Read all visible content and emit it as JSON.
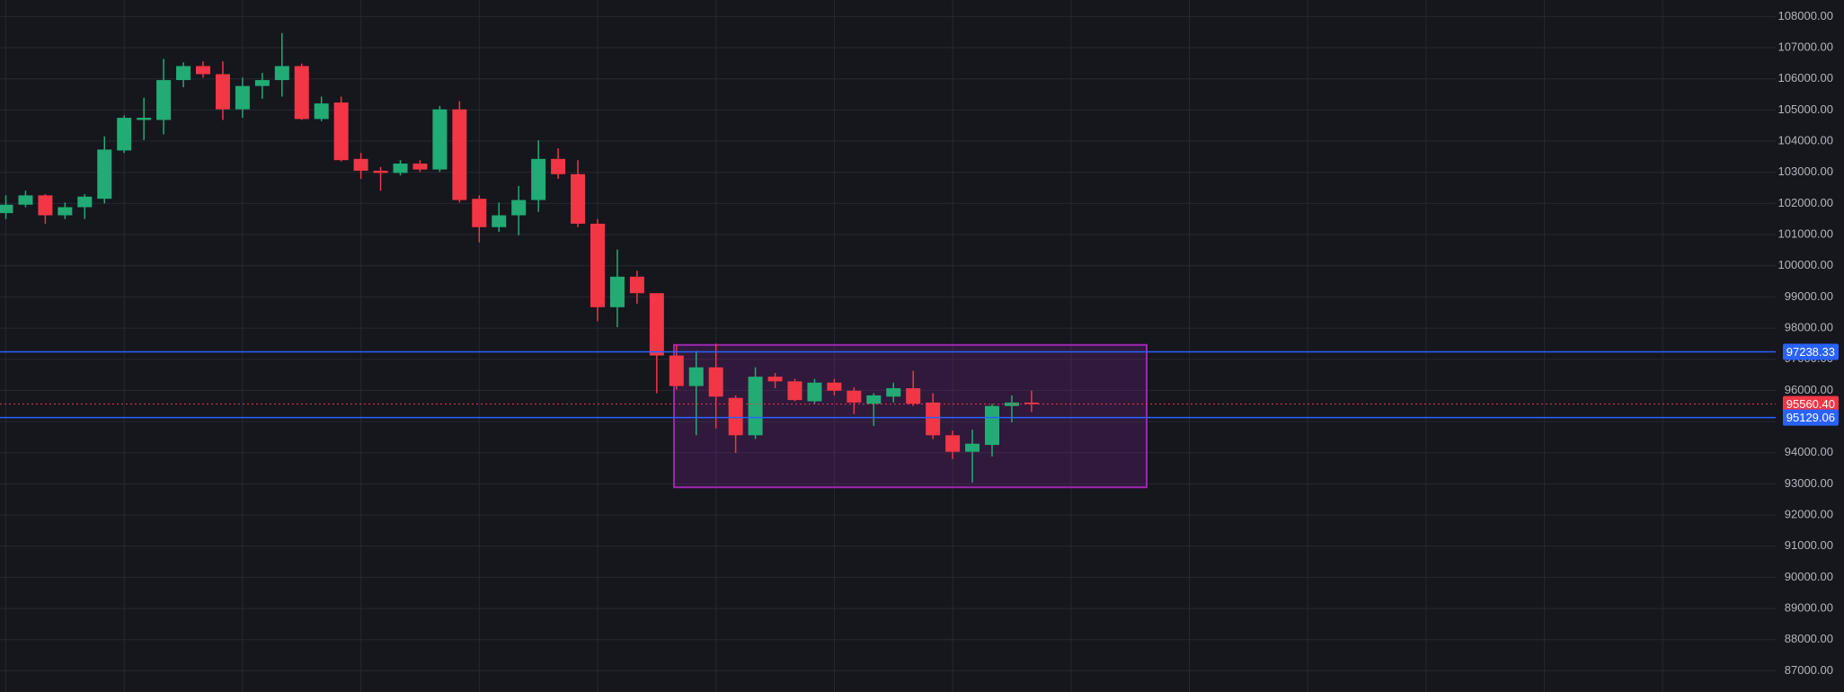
{
  "chart_data": {
    "type": "candlestick",
    "open": [
      101690,
      101960,
      102260,
      101620,
      101880,
      102150,
      103700,
      104680,
      104680,
      105960,
      106410,
      106150,
      105020,
      105770,
      105960,
      106410,
      104710,
      105240,
      103430,
      103050,
      102980,
      103280,
      103090,
      105020,
      102150,
      101240,
      101620,
      102110,
      103430,
      102940,
      101350,
      98670,
      99650,
      99120,
      97120,
      96140,
      96740,
      95760,
      94560,
      96440,
      96290,
      95650,
      96250,
      95990,
      95570,
      95800,
      96070,
      95610,
      94560,
      94030,
      94250,
      95500,
      95610
    ],
    "high": [
      102260,
      102410,
      102300,
      102030,
      102300,
      104150,
      104830,
      105390,
      106640,
      106530,
      106560,
      106560,
      106040,
      106190,
      107470,
      106490,
      105430,
      105430,
      103620,
      103170,
      103390,
      103390,
      105130,
      105280,
      102260,
      102030,
      102560,
      104030,
      103770,
      103390,
      101500,
      100520,
      99840,
      99120,
      97460,
      97270,
      97500,
      95840,
      96740,
      96560,
      96370,
      96370,
      96370,
      96100,
      95910,
      96250,
      96630,
      95910,
      94710,
      94740,
      95570,
      95840,
      95990
    ],
    "low": [
      101500,
      101880,
      101350,
      101500,
      101500,
      102000,
      103620,
      104030,
      104220,
      105730,
      106040,
      104680,
      104750,
      105360,
      105430,
      104680,
      104640,
      103350,
      102790,
      102410,
      102900,
      103010,
      103010,
      102030,
      100750,
      101090,
      100980,
      101730,
      102790,
      101240,
      98220,
      98030,
      98780,
      95910,
      96030,
      94560,
      94780,
      93990,
      94440,
      96070,
      95650,
      95570,
      95840,
      95240,
      94860,
      95610,
      95500,
      94440,
      93800,
      93040,
      93880,
      94970,
      95310
    ],
    "close": [
      101960,
      102260,
      101620,
      101880,
      102220,
      103730,
      104750,
      104750,
      105960,
      106410,
      106150,
      105020,
      105770,
      105960,
      106410,
      104710,
      105210,
      103390,
      103050,
      102980,
      103280,
      103090,
      105020,
      102110,
      101240,
      101620,
      102110,
      103430,
      102940,
      101350,
      98670,
      99650,
      99120,
      97120,
      96140,
      96740,
      95800,
      94560,
      96440,
      96290,
      95690,
      96250,
      95990,
      95610,
      95840,
      96070,
      95570,
      94560,
      94030,
      94290,
      95500,
      95610,
      95560.4
    ],
    "up_color": "#22ab74",
    "down_color": "#f23645",
    "ylim": [
      86320,
      108530
    ],
    "yticks": [
      {
        "value": 87000,
        "label": "87000.00"
      },
      {
        "value": 88000,
        "label": "88000.00"
      },
      {
        "value": 89000,
        "label": "89000.00"
      },
      {
        "value": 90000,
        "label": "90000.00"
      },
      {
        "value": 91000,
        "label": "91000.00"
      },
      {
        "value": 92000,
        "label": "92000.00"
      },
      {
        "value": 93000,
        "label": "93000.00"
      },
      {
        "value": 94000,
        "label": "94000.00"
      },
      {
        "value": 95000,
        "label": "95000.00"
      },
      {
        "value": 96000,
        "label": "96000.00"
      },
      {
        "value": 97000,
        "label": "97000.00"
      },
      {
        "value": 98000,
        "label": "98000.00"
      },
      {
        "value": 99000,
        "label": "99000.00"
      },
      {
        "value": 100000,
        "label": "100000.00"
      },
      {
        "value": 101000,
        "label": "101000.00"
      },
      {
        "value": 102000,
        "label": "102000.00"
      },
      {
        "value": 103000,
        "label": "103000.00"
      },
      {
        "value": 104000,
        "label": "104000.00"
      },
      {
        "value": 105000,
        "label": "105000.00"
      },
      {
        "value": 106000,
        "label": "106000.00"
      },
      {
        "value": 107000,
        "label": "107000.00"
      },
      {
        "value": 108000,
        "label": "108000.00"
      }
    ],
    "grid": true,
    "levels": [
      {
        "price": 97238.33,
        "color": "#2962ff",
        "style": "solid"
      },
      {
        "price": {
          "value": 95560.4,
          "label": "95560.40"
        },
        "color": "#f23645",
        "style": "dotted"
      },
      {
        "price": 95129.06,
        "color": "#2962ff",
        "style": "solid"
      }
    ],
    "box": {
      "top": 97460,
      "bottom": 92890,
      "color": "#9c27b0"
    }
  }
}
